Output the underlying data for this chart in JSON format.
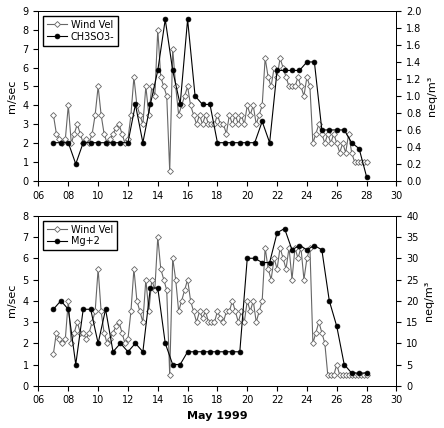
{
  "top_panel": {
    "wind_x": [
      7.0,
      7.2,
      7.4,
      7.6,
      7.8,
      8.0,
      8.2,
      8.4,
      8.6,
      8.8,
      9.0,
      9.2,
      9.4,
      9.6,
      9.8,
      10.0,
      10.2,
      10.4,
      10.6,
      10.8,
      11.0,
      11.2,
      11.4,
      11.6,
      11.8,
      12.0,
      12.2,
      12.4,
      12.6,
      12.8,
      13.0,
      13.2,
      13.4,
      13.6,
      13.8,
      14.0,
      14.2,
      14.4,
      14.6,
      14.8,
      15.0,
      15.2,
      15.4,
      15.6,
      15.8,
      16.0,
      16.2,
      16.4,
      16.6,
      16.8,
      17.0,
      17.2,
      17.4,
      17.6,
      17.8,
      18.0,
      18.2,
      18.4,
      18.6,
      18.8,
      19.0,
      19.2,
      19.4,
      19.6,
      19.8,
      20.0,
      20.2,
      20.4,
      20.6,
      20.8,
      21.0,
      21.2,
      21.4,
      21.6,
      21.8,
      22.0,
      22.2,
      22.4,
      22.6,
      22.8,
      23.0,
      23.2,
      23.4,
      23.6,
      23.8,
      24.0,
      24.2,
      24.4,
      24.6,
      24.8,
      25.0,
      25.2,
      25.4,
      25.6,
      25.8,
      26.0,
      26.2,
      26.4,
      26.6,
      26.8,
      27.0,
      27.2,
      27.4,
      27.6,
      27.8,
      28.0
    ],
    "wind_y": [
      3.5,
      2.5,
      2.2,
      2.0,
      2.2,
      4.0,
      2.0,
      2.5,
      3.0,
      2.5,
      2.0,
      2.2,
      2.0,
      2.5,
      3.5,
      5.0,
      3.5,
      2.5,
      2.0,
      2.2,
      2.5,
      2.8,
      3.0,
      2.5,
      2.0,
      2.2,
      3.5,
      5.5,
      4.0,
      3.5,
      3.0,
      5.0,
      3.5,
      5.0,
      4.5,
      8.0,
      5.5,
      5.0,
      4.5,
      0.5,
      7.0,
      5.0,
      3.5,
      4.0,
      4.5,
      5.0,
      4.0,
      3.5,
      3.0,
      3.5,
      3.0,
      3.5,
      3.0,
      3.0,
      3.0,
      3.5,
      3.0,
      3.0,
      2.5,
      3.5,
      3.0,
      3.5,
      3.0,
      3.5,
      3.0,
      4.0,
      3.5,
      4.0,
      3.0,
      3.5,
      4.0,
      6.5,
      5.5,
      5.0,
      6.0,
      5.5,
      6.5,
      6.0,
      5.5,
      5.0,
      5.0,
      5.0,
      5.5,
      5.0,
      4.5,
      5.5,
      5.0,
      2.0,
      2.5,
      3.0,
      2.5,
      2.0,
      2.5,
      2.0,
      2.5,
      2.0,
      1.5,
      2.0,
      1.5,
      2.5,
      1.5,
      1.0,
      1.0,
      1.0,
      1.0,
      1.0
    ],
    "chem_x": [
      7.0,
      7.5,
      8.0,
      8.5,
      9.0,
      9.5,
      10.0,
      10.5,
      11.0,
      11.5,
      12.0,
      12.5,
      13.0,
      13.5,
      14.0,
      14.5,
      15.0,
      15.5,
      16.0,
      16.5,
      17.0,
      17.5,
      18.0,
      18.5,
      19.0,
      19.5,
      20.0,
      20.5,
      21.0,
      21.5,
      22.0,
      22.5,
      23.0,
      23.5,
      24.0,
      24.5,
      25.0,
      25.5,
      26.0,
      26.5,
      27.0,
      27.5,
      28.0
    ],
    "chem_y": [
      0.45,
      0.45,
      0.45,
      0.2,
      0.45,
      0.45,
      0.45,
      0.45,
      0.45,
      0.45,
      0.45,
      0.9,
      0.45,
      0.9,
      1.3,
      1.9,
      1.3,
      0.9,
      1.9,
      1.0,
      0.9,
      0.9,
      0.45,
      0.45,
      0.45,
      0.45,
      0.45,
      0.45,
      0.7,
      0.45,
      1.3,
      1.3,
      1.3,
      1.3,
      1.4,
      1.4,
      0.6,
      0.6,
      0.6,
      0.6,
      0.45,
      0.38,
      0.05
    ],
    "ylabel_left": "m/sec",
    "ylabel_right": "neq/m³",
    "ylim_left": [
      0,
      9
    ],
    "ylim_right": [
      0,
      2.0
    ],
    "yticks_left": [
      0,
      1,
      2,
      3,
      4,
      5,
      6,
      7,
      8,
      9
    ],
    "yticks_right": [
      0.0,
      0.2,
      0.4,
      0.6,
      0.8,
      1.0,
      1.2,
      1.4,
      1.6,
      1.8,
      2.0
    ],
    "legend1": "Wind Vel",
    "legend2": "CH3SO3-"
  },
  "bot_panel": {
    "wind_x": [
      7.0,
      7.2,
      7.4,
      7.6,
      7.8,
      8.0,
      8.2,
      8.4,
      8.6,
      8.8,
      9.0,
      9.2,
      9.4,
      9.6,
      9.8,
      10.0,
      10.2,
      10.4,
      10.6,
      10.8,
      11.0,
      11.2,
      11.4,
      11.6,
      11.8,
      12.0,
      12.2,
      12.4,
      12.6,
      12.8,
      13.0,
      13.2,
      13.4,
      13.6,
      13.8,
      14.0,
      14.2,
      14.4,
      14.6,
      14.8,
      15.0,
      15.2,
      15.4,
      15.6,
      15.8,
      16.0,
      16.2,
      16.4,
      16.6,
      16.8,
      17.0,
      17.2,
      17.4,
      17.6,
      17.8,
      18.0,
      18.2,
      18.4,
      18.6,
      18.8,
      19.0,
      19.2,
      19.4,
      19.6,
      19.8,
      20.0,
      20.2,
      20.4,
      20.6,
      20.8,
      21.0,
      21.2,
      21.4,
      21.6,
      21.8,
      22.0,
      22.2,
      22.4,
      22.6,
      22.8,
      23.0,
      23.2,
      23.4,
      23.6,
      23.8,
      24.0,
      24.2,
      24.4,
      24.6,
      24.8,
      25.0,
      25.2,
      25.4,
      25.6,
      25.8,
      26.0,
      26.2,
      26.4,
      26.6,
      26.8,
      27.0,
      27.2,
      27.4,
      27.6,
      27.8,
      28.0
    ],
    "wind_y": [
      1.5,
      2.5,
      2.2,
      2.0,
      2.2,
      4.0,
      2.0,
      2.5,
      3.0,
      2.5,
      2.5,
      2.2,
      2.5,
      3.0,
      3.5,
      5.5,
      3.5,
      2.5,
      2.0,
      2.2,
      2.5,
      2.8,
      3.0,
      2.5,
      2.0,
      2.2,
      3.5,
      5.5,
      4.0,
      3.5,
      3.0,
      5.0,
      3.5,
      5.0,
      4.5,
      7.0,
      5.5,
      5.0,
      4.5,
      0.5,
      6.0,
      5.0,
      3.5,
      4.0,
      4.5,
      5.0,
      4.0,
      3.5,
      3.0,
      3.5,
      3.2,
      3.5,
      3.0,
      3.0,
      3.0,
      3.5,
      3.2,
      3.0,
      3.5,
      3.5,
      4.0,
      3.5,
      3.0,
      3.5,
      3.0,
      4.0,
      3.5,
      4.0,
      3.0,
      3.5,
      4.0,
      6.5,
      5.5,
      5.0,
      6.0,
      5.5,
      6.5,
      6.0,
      5.5,
      6.5,
      5.0,
      6.5,
      6.0,
      6.5,
      5.0,
      6.0,
      6.5,
      2.0,
      2.5,
      3.0,
      2.5,
      2.0,
      0.5,
      0.5,
      0.5,
      1.0,
      0.5,
      0.5,
      0.5,
      0.5,
      0.5,
      0.5,
      0.5,
      0.5,
      0.5,
      0.5
    ],
    "chem_x": [
      7.0,
      7.5,
      8.0,
      8.5,
      9.0,
      9.5,
      10.0,
      10.5,
      11.0,
      11.5,
      12.0,
      12.5,
      13.0,
      13.5,
      14.0,
      14.5,
      15.0,
      15.5,
      16.0,
      16.5,
      17.0,
      17.5,
      18.0,
      18.5,
      19.0,
      19.5,
      20.0,
      20.5,
      21.0,
      21.5,
      22.0,
      22.5,
      23.0,
      23.5,
      24.0,
      24.5,
      25.0,
      25.5,
      26.0,
      26.5,
      27.0,
      27.5,
      28.0
    ],
    "chem_y": [
      18.0,
      20.0,
      18.0,
      5.0,
      18.0,
      18.0,
      10.0,
      18.0,
      8.0,
      10.0,
      8.0,
      10.0,
      8.0,
      23.0,
      23.0,
      10.0,
      5.0,
      5.0,
      8.0,
      8.0,
      8.0,
      8.0,
      8.0,
      8.0,
      8.0,
      8.0,
      30.0,
      30.0,
      29.0,
      29.0,
      36.0,
      37.0,
      32.0,
      33.0,
      32.0,
      33.0,
      32.0,
      20.0,
      14.0,
      5.0,
      3.0,
      3.0,
      3.0
    ],
    "ylabel_left": "m/sec",
    "ylabel_right": "neq/m³",
    "ylim_left": [
      0,
      8
    ],
    "ylim_right": [
      0,
      40
    ],
    "yticks_left": [
      0,
      1,
      2,
      3,
      4,
      5,
      6,
      7,
      8
    ],
    "yticks_right": [
      0,
      5,
      10,
      15,
      20,
      25,
      30,
      35,
      40
    ],
    "legend1": "Wind Vel",
    "legend2": "Mg+2"
  },
  "xlabel": "May 1999",
  "xlim": [
    6,
    30
  ],
  "xticks": [
    6,
    8,
    10,
    12,
    14,
    16,
    18,
    20,
    22,
    24,
    26,
    28,
    30
  ],
  "xticklabels": [
    "06",
    "08",
    "10",
    "12",
    "14",
    "16",
    "18",
    "20",
    "22",
    "24",
    "26",
    "28",
    "30"
  ],
  "wind_color": "#666666",
  "chem_color": "#000000",
  "bg_color": "#ffffff",
  "linewidth": 0.8,
  "markersize_wind": 3,
  "markersize_chem": 3.5
}
